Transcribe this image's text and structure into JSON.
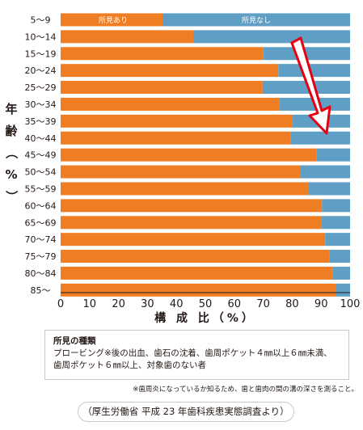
{
  "chart_data": {
    "type": "bar",
    "orientation": "horizontal",
    "stacked": true,
    "categories": [
      "5～9",
      "10～14",
      "15～19",
      "20～24",
      "25～29",
      "30～34",
      "35～39",
      "40～44",
      "45～49",
      "50～54",
      "55～59",
      "60～64",
      "65～69",
      "70～74",
      "75～79",
      "80～84",
      "85～"
    ],
    "series": [
      {
        "name": "所見あり",
        "color": "#ef7d24",
        "values": [
          35.2,
          45.8,
          69.9,
          75.2,
          69.8,
          75.6,
          80.0,
          79.5,
          88.5,
          82.7,
          85.6,
          90.3,
          90.2,
          91.4,
          92.8,
          94.1,
          95.1
        ]
      },
      {
        "name": "所見なし",
        "color": "#5f9fc6",
        "values": [
          64.8,
          54.2,
          30.1,
          24.8,
          30.2,
          24.4,
          20.0,
          20.5,
          11.5,
          17.3,
          14.4,
          9.7,
          9.8,
          8.6,
          7.2,
          5.9,
          4.9
        ]
      }
    ],
    "xlabel": "構 成 比（%）",
    "ylabel": "年齢（%）",
    "xlim": [
      0,
      100
    ],
    "xticks": [
      "0",
      "10",
      "20",
      "30",
      "40",
      "50",
      "60",
      "70",
      "80",
      "90",
      "100"
    ],
    "legend_placement": "inside-first-bar",
    "grid": false
  },
  "note": {
    "title": "所見の種類",
    "line1": "プロービング※後の出血、歯石の沈着、歯周ポケット４㎜以上６㎜未満、",
    "line2": "歯周ポケット６㎜以上、対象歯のない者"
  },
  "footnote": "※歯周炎になっているか知るため、歯と歯肉の間の溝の深さを測ること。",
  "source": "（厚生労働省 平成 23 年歯科疾患実態調査より）"
}
